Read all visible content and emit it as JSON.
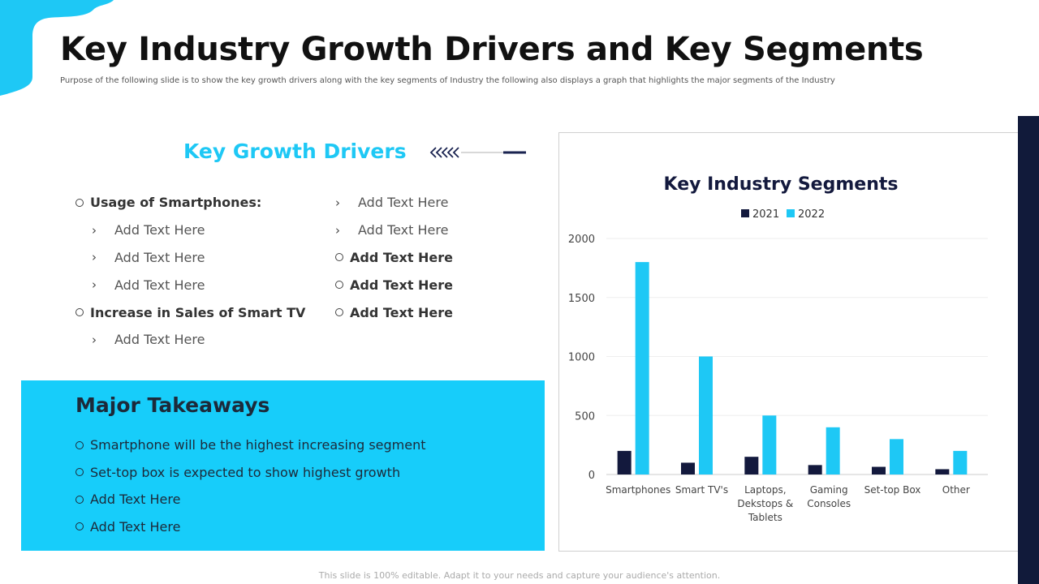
{
  "slide": {
    "title": "Key Industry Growth Drivers and Key Segments",
    "subtitle": "Purpose of the following slide is to show the key growth drivers along with the key segments of Industry the following also displays a graph that highlights the major segments of the Industry",
    "footer": "This slide is 100% editable. Adapt it to your needs and capture your audience's attention."
  },
  "drivers": {
    "heading": "Key Growth Drivers",
    "left_items": [
      {
        "level": 1,
        "text": "Usage of Smartphones:",
        "bold": true
      },
      {
        "level": 2,
        "text": "Add Text Here",
        "bold": false
      },
      {
        "level": 2,
        "text": "Add Text Here",
        "bold": false
      },
      {
        "level": 2,
        "text": "Add Text Here",
        "bold": false
      },
      {
        "level": 1,
        "text": "Increase in Sales of Smart TV",
        "bold": true
      },
      {
        "level": 2,
        "text": "Add Text Here",
        "bold": false
      }
    ],
    "right_items": [
      {
        "level": 2,
        "text": "Add Text Here",
        "bold": false
      },
      {
        "level": 2,
        "text": "Add Text Here",
        "bold": false
      },
      {
        "level": 1,
        "text": "Add Text Here",
        "bold": true
      },
      {
        "level": 1,
        "text": "Add Text Here",
        "bold": true
      },
      {
        "level": 1,
        "text": "Add Text Here",
        "bold": true
      }
    ]
  },
  "takeaways": {
    "heading": "Major Takeaways",
    "items": [
      "Smartphone will be the highest increasing segment",
      "Set-top box is expected to show highest growth",
      "Add Text Here",
      "Add Text Here"
    ]
  },
  "colors": {
    "accent": "#1ec8f5",
    "dark_navy": "#111a3a",
    "series_2021": "#13193d",
    "series_2022": "#1ec8f5"
  },
  "chart_data": {
    "type": "bar",
    "title": "Key Industry Segments",
    "categories": [
      [
        "Smartphones"
      ],
      [
        "Smart TV's"
      ],
      [
        "Laptops,",
        "Dekstops &",
        "Tablets"
      ],
      [
        "Gaming",
        "Consoles"
      ],
      [
        "Set-top Box"
      ],
      [
        "Other"
      ]
    ],
    "series": [
      {
        "name": "2021",
        "values": [
          200,
          100,
          150,
          80,
          65,
          45
        ],
        "color": "#13193d"
      },
      {
        "name": "2022",
        "values": [
          1800,
          1000,
          500,
          400,
          300,
          200
        ],
        "color": "#1ec8f5"
      }
    ],
    "ylim": [
      0,
      2000
    ],
    "yticks": [
      0,
      500,
      1000,
      1500,
      2000
    ],
    "grid": true,
    "legend": "top"
  }
}
